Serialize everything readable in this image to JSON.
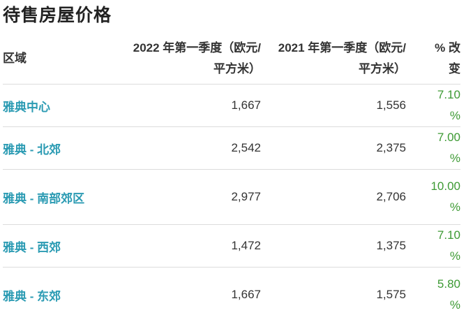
{
  "title": "待售房屋价格",
  "table": {
    "headers": [
      "区域",
      "2022 年第一季度（欧元/平方米）",
      "2021 年第一季度（欧元/平方米）",
      "% 改变"
    ],
    "rows": [
      {
        "region": "雅典中心",
        "q1_2022": "1,667",
        "q1_2021": "1,556",
        "change": "7.10 %"
      },
      {
        "region": "雅典 - 北郊",
        "q1_2022": "2,542",
        "q1_2021": "2,375",
        "change": "7.00 %"
      },
      {
        "region": "雅典 - 南部郊区",
        "q1_2022": "2,977",
        "q1_2021": "2,706",
        "change": "10.00 %"
      },
      {
        "region": "雅典 - 西郊",
        "q1_2022": "1,472",
        "q1_2021": "1,375",
        "change": "7.10 %"
      },
      {
        "region": "雅典 - 东郊",
        "q1_2022": "1,667",
        "q1_2021": "1,575",
        "change": "5.80 %"
      }
    ]
  },
  "colors": {
    "region_link": "#2b9bb3",
    "change_positive": "#3d9a34"
  }
}
